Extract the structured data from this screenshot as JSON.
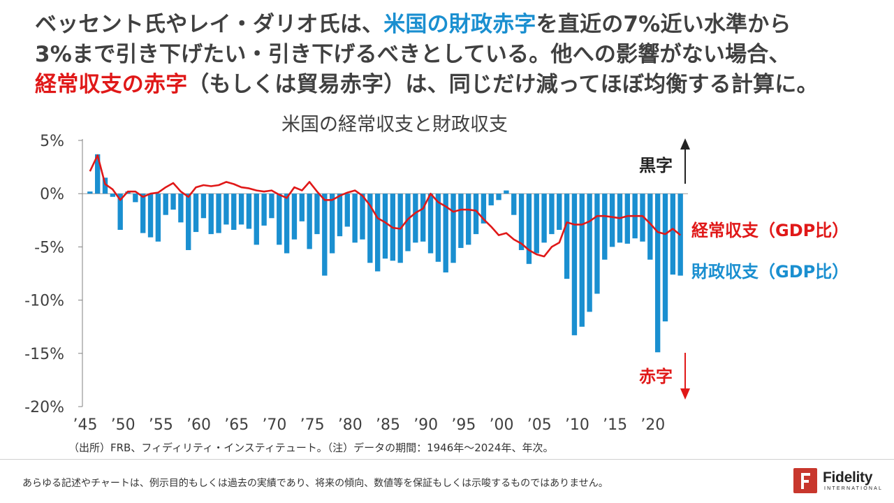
{
  "headline": {
    "line1_pre": "ベッセント氏やレイ・ダリオ氏は、",
    "line1_hl": "米国の財政赤字",
    "line1_post": "を直近の7%近い水準から",
    "line2": "3%まで引き下げたい・引き下げるべきとしている。他への影響がない場合、",
    "line3_hl": "経常収支の赤字",
    "line3_post": "（もしくは貿易赤字）は、同じだけ減ってほぼ均衡する計算に。"
  },
  "chart_data": {
    "type": "bar+line",
    "title": "米国の経常収支と財政収支",
    "y_ticks": [
      "5%",
      "0%",
      "-5%",
      "-10%",
      "-15%",
      "-20%"
    ],
    "ylim": [
      -20,
      5
    ],
    "x_tick_labels": [
      "’45",
      "’50",
      "’55",
      "’60",
      "’65",
      "’70",
      "’75",
      "’80",
      "’85",
      "’90",
      "’95",
      "’00",
      "’05",
      "’10",
      "’15",
      "’20"
    ],
    "years": [
      1946,
      1947,
      1948,
      1949,
      1950,
      1951,
      1952,
      1953,
      1954,
      1955,
      1956,
      1957,
      1958,
      1959,
      1960,
      1961,
      1962,
      1963,
      1964,
      1965,
      1966,
      1967,
      1968,
      1969,
      1970,
      1971,
      1972,
      1973,
      1974,
      1975,
      1976,
      1977,
      1978,
      1979,
      1980,
      1981,
      1982,
      1983,
      1984,
      1985,
      1986,
      1987,
      1988,
      1989,
      1990,
      1991,
      1992,
      1993,
      1994,
      1995,
      1996,
      1997,
      1998,
      1999,
      2000,
      2001,
      2002,
      2003,
      2004,
      2005,
      2006,
      2007,
      2008,
      2009,
      2010,
      2011,
      2012,
      2013,
      2014,
      2015,
      2016,
      2017,
      2018,
      2019,
      2020,
      2021,
      2022,
      2023,
      2024
    ],
    "series": [
      {
        "name": "財政収支（GDP比）",
        "kind": "bar",
        "color": "#1a8fd0",
        "values": [
          0.2,
          3.7,
          1.5,
          -0.3,
          -3.4,
          0.2,
          -0.8,
          -3.7,
          -4.1,
          -4.5,
          -2.0,
          -1.5,
          -2.7,
          -5.3,
          -3.6,
          -2.3,
          -3.8,
          -3.7,
          -2.9,
          -3.4,
          -2.9,
          -3.3,
          -4.8,
          -3.0,
          -2.3,
          -4.8,
          -5.6,
          -4.3,
          -2.6,
          -5.2,
          -3.8,
          -7.7,
          -5.6,
          -4.0,
          -3.1,
          -4.6,
          -4.3,
          -6.5,
          -7.3,
          -6.1,
          -6.3,
          -6.5,
          -5.4,
          -4.6,
          -4.5,
          -5.6,
          -6.4,
          -7.4,
          -6.5,
          -5.1,
          -4.8,
          -3.8,
          -2.8,
          -1.1,
          -0.6,
          0.3,
          -2.0,
          -5.3,
          -6.6,
          -5.6,
          -4.6,
          -3.8,
          -3.4,
          -8.0,
          -13.3,
          -12.5,
          -11.1,
          -9.4,
          -6.2,
          -5.0,
          -4.6,
          -4.7,
          -4.2,
          -4.5,
          -6.2,
          -14.9,
          -12.0,
          -7.6,
          -7.7
        ]
      },
      {
        "name": "経常収支（GDP比）",
        "kind": "line",
        "color": "#e01818",
        "values": [
          2.1,
          3.6,
          0.9,
          0.4,
          -0.6,
          0.2,
          0.2,
          -0.3,
          0.0,
          0.1,
          0.6,
          1.0,
          0.2,
          -0.3,
          0.6,
          0.8,
          0.7,
          0.8,
          1.1,
          0.9,
          0.6,
          0.5,
          0.3,
          0.2,
          0.3,
          -0.1,
          -0.4,
          0.6,
          0.3,
          1.1,
          0.2,
          -0.6,
          -0.6,
          -0.2,
          0.1,
          0.3,
          -0.2,
          -1.1,
          -2.3,
          -2.7,
          -3.2,
          -3.3,
          -2.4,
          -1.8,
          -1.4,
          0.0,
          -0.8,
          -1.2,
          -1.7,
          -1.5,
          -1.5,
          -1.6,
          -2.4,
          -3.1,
          -3.9,
          -3.7,
          -4.3,
          -4.7,
          -5.3,
          -5.7,
          -5.9,
          -5.0,
          -4.6,
          -2.7,
          -2.9,
          -2.9,
          -2.6,
          -2.1,
          -2.1,
          -2.2,
          -2.3,
          -2.1,
          -2.1,
          -2.1,
          -2.8,
          -3.6,
          -3.8,
          -3.3,
          -3.9
        ]
      }
    ],
    "annotations": {
      "surplus": "黒字",
      "deficit": "赤字"
    }
  },
  "footer": {
    "source": "（出所）FRB、フィディリティ・インスティテュート。（注）データの期間：1946年～2024年、年次。",
    "disclaimer": "あらゆる記述やチャートは、例示目的もしくは過去の実績であり、将来の傾向、数値等を保証もしくは示唆するものではありません。",
    "logo_word": "Fidelity",
    "logo_sub": "INTERNATIONAL"
  }
}
